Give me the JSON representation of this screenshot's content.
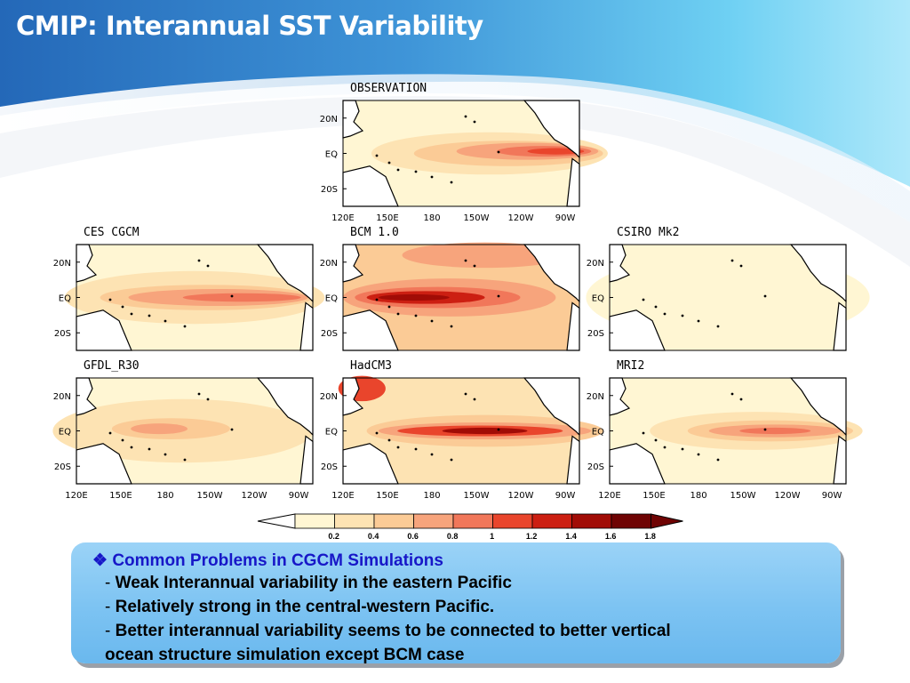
{
  "slide": {
    "title": "CMIP: Interannual SST Variability"
  },
  "panels": [
    {
      "name": "observation",
      "title": "OBSERVATION",
      "pattern": "obs"
    },
    {
      "name": "ces-cgcm",
      "title": "CES  CGCM",
      "pattern": "ces"
    },
    {
      "name": "bcm",
      "title": "BCM  1.0",
      "pattern": "bcm"
    },
    {
      "name": "csiro",
      "title": "CSIRO  Mk2",
      "pattern": "csiro"
    },
    {
      "name": "gfdl",
      "title": "GFDL_R30",
      "pattern": "gfdl"
    },
    {
      "name": "hadcm3",
      "title": "HadCM3",
      "pattern": "had"
    },
    {
      "name": "mri2",
      "title": "MRI2",
      "pattern": "mri"
    }
  ],
  "axes": {
    "lat_ticks": [
      "20N",
      "EQ",
      "20S"
    ],
    "lon_ticks": [
      "120E",
      "150E",
      "180",
      "150W",
      "120W",
      "90W"
    ]
  },
  "colorbar": {
    "labels": [
      "0.2",
      "0.4",
      "0.6",
      "0.8",
      "1",
      "1.2",
      "1.4",
      "1.6",
      "1.8"
    ],
    "colors": [
      "#fff6d3",
      "#fde3b3",
      "#fbcb96",
      "#f7a47c",
      "#f1775a",
      "#e9452c",
      "#cc1f12",
      "#a10c06",
      "#6f0303"
    ]
  },
  "notes": {
    "heading": "Common Problems in CGCM Simulations",
    "bullet_icon": "diamond-bullet-icon",
    "dash": "-",
    "items": [
      "Weak Interannual variability in the eastern Pacific",
      "Relatively strong in the central-western Pacific.",
      "Better interannual variability seems to be connected to better vertical"
    ],
    "continuation": "ocean structure simulation except BCM case"
  },
  "colors": {
    "title_text": "#ffffff",
    "heading_text": "#1717c8",
    "note_box": "#7cc3f2",
    "land": "#ffffff"
  }
}
